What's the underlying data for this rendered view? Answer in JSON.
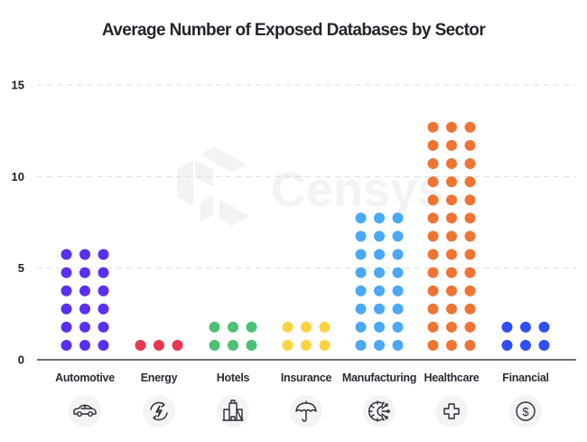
{
  "watermark": "Censys",
  "chart_data": {
    "type": "bar",
    "subtype": "dot-matrix",
    "title": "Average Number of Exposed Databases by Sector",
    "xlabel": "",
    "ylabel": "",
    "ylim": [
      0,
      15
    ],
    "yticks": [
      "0",
      "5",
      "10",
      "15"
    ],
    "ytick_values": [
      0,
      5,
      10,
      15
    ],
    "grid": true,
    "legend": "none",
    "dots_per_row": 3,
    "categories": [
      "Automotive",
      "Energy",
      "Hotels",
      "Insurance",
      "Manufacturing",
      "Healthcare",
      "Financial"
    ],
    "values": [
      6,
      1,
      2,
      2,
      8,
      13,
      2
    ],
    "colors": [
      "#5b2ff0",
      "#e8384f",
      "#4cc074",
      "#fbd341",
      "#4aa8f5",
      "#ef7433",
      "#2f4ff0"
    ],
    "icons": [
      "car-icon",
      "renewable-energy-icon",
      "building-icon",
      "umbrella-icon",
      "gear-icon",
      "medical-cross-icon",
      "dollar-icon"
    ]
  }
}
